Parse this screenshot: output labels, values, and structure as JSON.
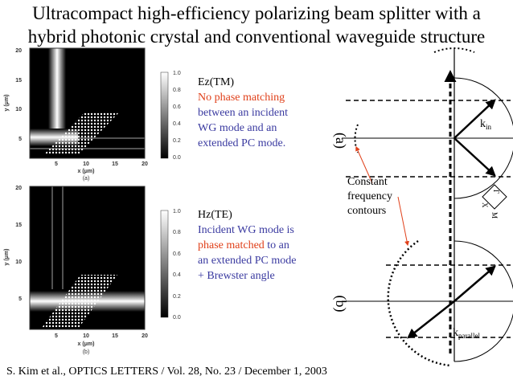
{
  "title": [
    "Ultracompact high-efficiency polarizing beam splitter with a",
    "hybrid photonic crystal and conventional waveguide structure"
  ],
  "panel_a": {
    "yticks": [
      "20",
      "15",
      "10",
      "5"
    ],
    "xticks": [
      "5",
      "10",
      "15",
      "20"
    ],
    "xlabel": "x (μm)",
    "ylabel": "y (μm)",
    "caption": "(a)",
    "colorbar": [
      "1.0",
      "0.8",
      "0.6",
      "0.4",
      "0.2",
      "0.0"
    ],
    "note": {
      "heading": "Ez(TM)",
      "red": "No phase matching",
      "blue": [
        "between an incident",
        "WG mode and an",
        "extended PC mode."
      ]
    }
  },
  "panel_b": {
    "yticks": [
      "20",
      "15",
      "10",
      "5"
    ],
    "xticks": [
      "5",
      "10",
      "15",
      "20"
    ],
    "xlabel": "x (μm)",
    "ylabel": "y (μm)",
    "caption": "(b)",
    "colorbar": [
      "1.0",
      "0.8",
      "0.6",
      "0.4",
      "0.2",
      "0.0"
    ],
    "note": {
      "heading": "Hz(TE)",
      "line1": "Incident WG mode is",
      "red": "phase matched",
      "after_red": " to an",
      "lines": [
        "an extended PC mode",
        "+ Brewster angle"
      ]
    }
  },
  "diagram": {
    "label_a": "(a)",
    "label_b": "(b)",
    "k": "k",
    "k_in_sub": "in",
    "k_par_sub": "parallel",
    "contours": [
      "Constant",
      "frequency",
      "contours"
    ],
    "gamma": "Γ",
    "x": "X",
    "m": "M"
  },
  "citation": "S. Kim et al., OPTICS LETTERS / Vol. 28, No. 23 / December 1, 2003"
}
